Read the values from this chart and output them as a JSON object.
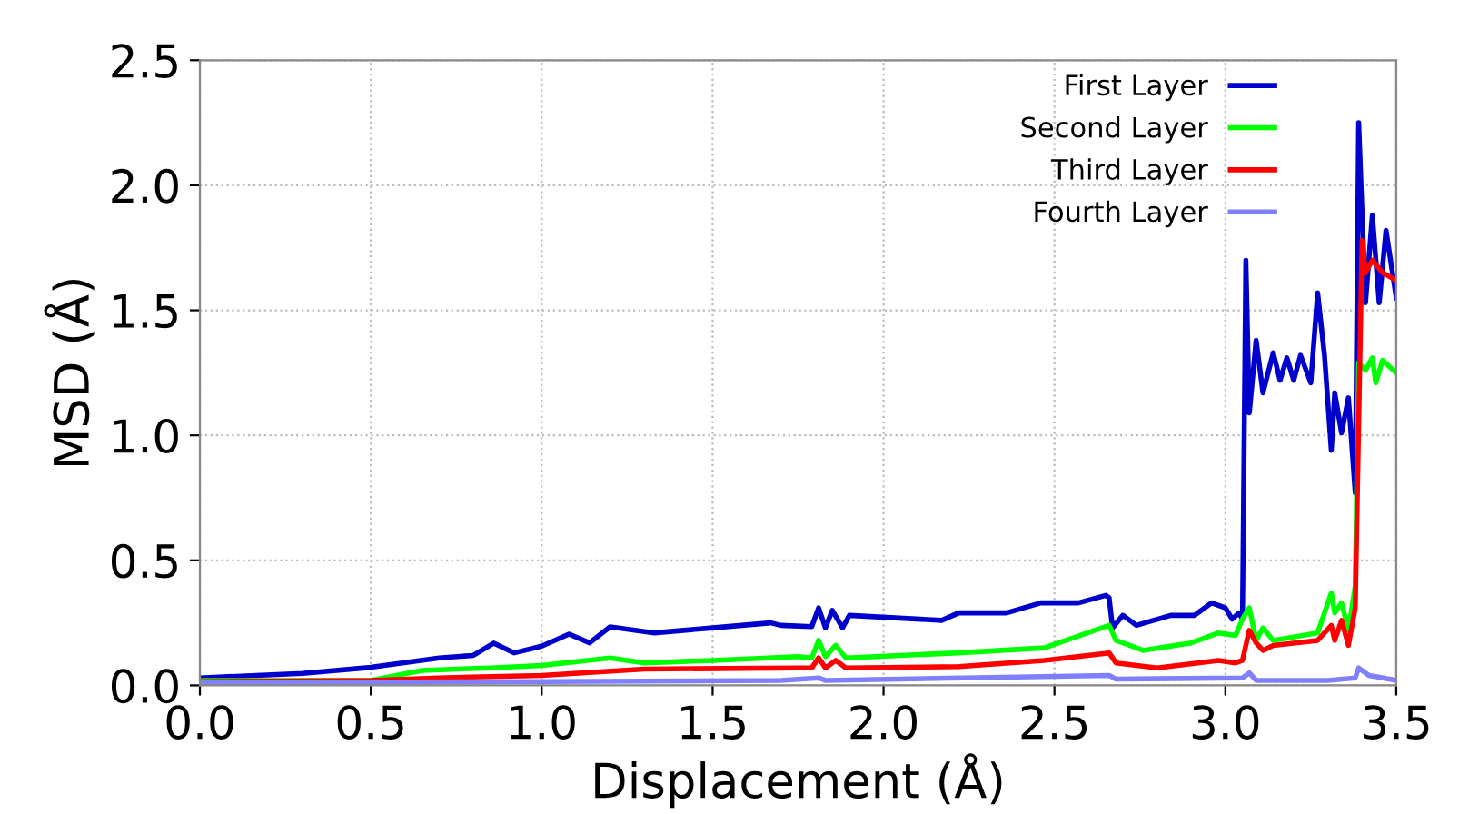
{
  "chart_data": {
    "type": "line",
    "xlabel": "Displacement (Å)",
    "ylabel": "MSD (Å)",
    "xlim": [
      0,
      3.5
    ],
    "ylim": [
      0,
      2.5
    ],
    "xticks": [
      {
        "value": 0,
        "label": "0.0"
      },
      0.5,
      {
        "value": 1,
        "label": "1.0"
      },
      1.5,
      {
        "value": 2,
        "label": "2.0"
      },
      2.5,
      {
        "value": 3,
        "label": "3.0"
      },
      3.5
    ],
    "yticks": [
      {
        "value": 0,
        "label": "0.0"
      },
      0.5,
      {
        "value": 1,
        "label": "1.0"
      },
      1.5,
      {
        "value": 2,
        "label": "2.0"
      },
      2.5
    ],
    "grid": true,
    "legend": "top right",
    "line_style": "solid",
    "series": [
      {
        "name": "First Layer",
        "color": "#0000cc",
        "x": [
          0,
          0.3,
          0.5,
          0.7,
          0.8,
          0.86,
          0.92,
          1.0,
          1.08,
          1.14,
          1.2,
          1.33,
          1.5,
          1.67,
          1.7,
          1.79,
          1.81,
          1.83,
          1.85,
          1.88,
          1.9,
          2.17,
          2.22,
          2.36,
          2.46,
          2.57,
          2.65,
          2.66,
          2.67,
          2.7,
          2.74,
          2.84,
          2.91,
          2.96,
          3.0,
          3.02,
          3.04,
          3.05,
          3.06,
          3.07,
          3.09,
          3.11,
          3.14,
          3.16,
          3.18,
          3.2,
          3.22,
          3.25,
          3.27,
          3.29,
          3.31,
          3.32,
          3.34,
          3.36,
          3.38,
          3.39,
          3.41,
          3.43,
          3.45,
          3.47,
          3.5
        ],
        "values": [
          0.03,
          0.048,
          0.072,
          0.11,
          0.12,
          0.169,
          0.13,
          0.157,
          0.205,
          0.17,
          0.234,
          0.21,
          0.23,
          0.25,
          0.24,
          0.235,
          0.31,
          0.23,
          0.3,
          0.23,
          0.28,
          0.26,
          0.29,
          0.29,
          0.33,
          0.33,
          0.36,
          0.35,
          0.23,
          0.28,
          0.24,
          0.28,
          0.28,
          0.33,
          0.31,
          0.265,
          0.29,
          0.265,
          1.7,
          1.09,
          1.38,
          1.17,
          1.33,
          1.22,
          1.31,
          1.22,
          1.32,
          1.21,
          1.57,
          1.32,
          0.94,
          1.17,
          1.01,
          1.15,
          0.77,
          2.25,
          1.53,
          1.88,
          1.53,
          1.82,
          1.55
        ]
      },
      {
        "name": "Second Layer",
        "color": "#00ff00",
        "x": [
          0,
          0.5,
          0.65,
          0.85,
          1.0,
          1.2,
          1.3,
          1.5,
          1.75,
          1.79,
          1.81,
          1.83,
          1.86,
          1.89,
          2.22,
          2.47,
          2.66,
          2.68,
          2.76,
          2.9,
          2.98,
          3.03,
          3.05,
          3.07,
          3.09,
          3.11,
          3.14,
          3.27,
          3.31,
          3.32,
          3.34,
          3.36,
          3.38,
          3.39,
          3.41,
          3.43,
          3.44,
          3.46,
          3.5
        ],
        "values": [
          0.02,
          0.02,
          0.06,
          0.07,
          0.08,
          0.11,
          0.09,
          0.1,
          0.115,
          0.11,
          0.18,
          0.115,
          0.16,
          0.11,
          0.13,
          0.15,
          0.24,
          0.18,
          0.14,
          0.17,
          0.21,
          0.2,
          0.265,
          0.31,
          0.18,
          0.23,
          0.18,
          0.21,
          0.37,
          0.29,
          0.33,
          0.22,
          0.4,
          1.29,
          1.26,
          1.31,
          1.21,
          1.3,
          1.25
        ]
      },
      {
        "name": "Third Layer",
        "color": "#ff0000",
        "x": [
          0,
          0.5,
          0.7,
          1.0,
          1.3,
          1.75,
          1.79,
          1.81,
          1.83,
          1.86,
          1.89,
          2.22,
          2.47,
          2.66,
          2.68,
          2.8,
          2.98,
          3.03,
          3.05,
          3.07,
          3.09,
          3.11,
          3.14,
          3.27,
          3.31,
          3.32,
          3.34,
          3.36,
          3.38,
          3.4,
          3.41,
          3.43,
          3.46,
          3.5
        ],
        "values": [
          0.015,
          0.02,
          0.03,
          0.04,
          0.065,
          0.07,
          0.07,
          0.11,
          0.07,
          0.1,
          0.07,
          0.075,
          0.1,
          0.13,
          0.09,
          0.07,
          0.1,
          0.09,
          0.1,
          0.22,
          0.17,
          0.14,
          0.16,
          0.18,
          0.24,
          0.18,
          0.26,
          0.16,
          0.31,
          1.78,
          1.65,
          1.7,
          1.65,
          1.62
        ]
      },
      {
        "name": "Fourth Layer",
        "color": "#8080ff",
        "x": [
          0,
          1.0,
          1.7,
          1.81,
          1.83,
          2.66,
          2.68,
          3.05,
          3.07,
          3.09,
          3.3,
          3.38,
          3.39,
          3.42,
          3.5
        ],
        "values": [
          0.01,
          0.015,
          0.02,
          0.03,
          0.02,
          0.04,
          0.025,
          0.03,
          0.05,
          0.02,
          0.02,
          0.03,
          0.07,
          0.04,
          0.02
        ]
      }
    ]
  }
}
